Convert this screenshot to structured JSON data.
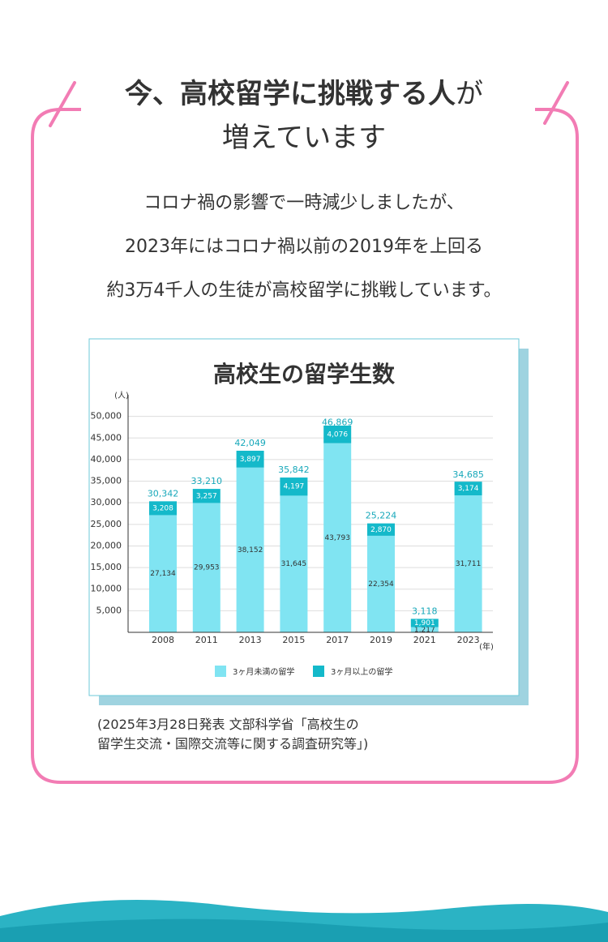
{
  "header": {
    "title_bold": "今、高校留学に挑戦する人",
    "title_rest": "が",
    "title_line2": "増えています"
  },
  "body": {
    "lines": [
      "コロナ禍の影響で一時減少しましたが、",
      "2023年にはコロナ禍以前の2019年を上回る",
      "約3万4千人の生徒が高校留学に挑戦しています。"
    ]
  },
  "chart_data": {
    "type": "stacked_bar",
    "title": "高校生の留学生数",
    "y_label": "(人)",
    "x_label": "(年)",
    "categories": [
      "2008",
      "2011",
      "2013",
      "2015",
      "2017",
      "2019",
      "2021",
      "2023"
    ],
    "series": [
      {
        "name": "3ヶ月未満の留学",
        "color": "#80e4f2",
        "values": [
          27134,
          29953,
          38152,
          31645,
          43793,
          22354,
          1217,
          31711
        ],
        "value_labels": [
          "27,134",
          "29,953",
          "38,152",
          "31,645",
          "43,793",
          "22,354",
          "1,217",
          "31,711"
        ]
      },
      {
        "name": "3ヶ月以上の留学",
        "color": "#14b9ca",
        "values": [
          3208,
          3257,
          3897,
          4197,
          4076,
          2870,
          1901,
          3174
        ],
        "value_labels": [
          "3,208",
          "3,257",
          "3,897",
          "4,197",
          "4,076",
          "2,870",
          "1,901",
          "3,174"
        ]
      }
    ],
    "totals": {
      "values": [
        30342,
        33210,
        42049,
        35842,
        46869,
        25224,
        3118,
        34685
      ],
      "value_labels": [
        "30,342",
        "33,210",
        "42,049",
        "35,842",
        "46,869",
        "25,224",
        "3,118",
        "34,685"
      ]
    },
    "ylim": [
      0,
      55000
    ],
    "yticks": [
      {
        "value": 5000,
        "label": "5,000"
      },
      {
        "value": 10000,
        "label": "10,000"
      },
      {
        "value": 15000,
        "label": "15,000"
      },
      {
        "value": 20000,
        "label": "20,000"
      },
      {
        "value": 25000,
        "label": "25,000"
      },
      {
        "value": 30000,
        "label": "30,000"
      },
      {
        "value": 35000,
        "label": "35,000"
      },
      {
        "value": 40000,
        "label": "40,000"
      },
      {
        "value": 45000,
        "label": "45,000"
      },
      {
        "value": 50000,
        "label": "50,000"
      }
    ],
    "grid": true,
    "legend": "bottom"
  },
  "source": {
    "lines": [
      "(2025年3月28日発表 文部科学省「高校生の",
      "留学生交流・国際交流等に関する調査研究等」)"
    ]
  }
}
